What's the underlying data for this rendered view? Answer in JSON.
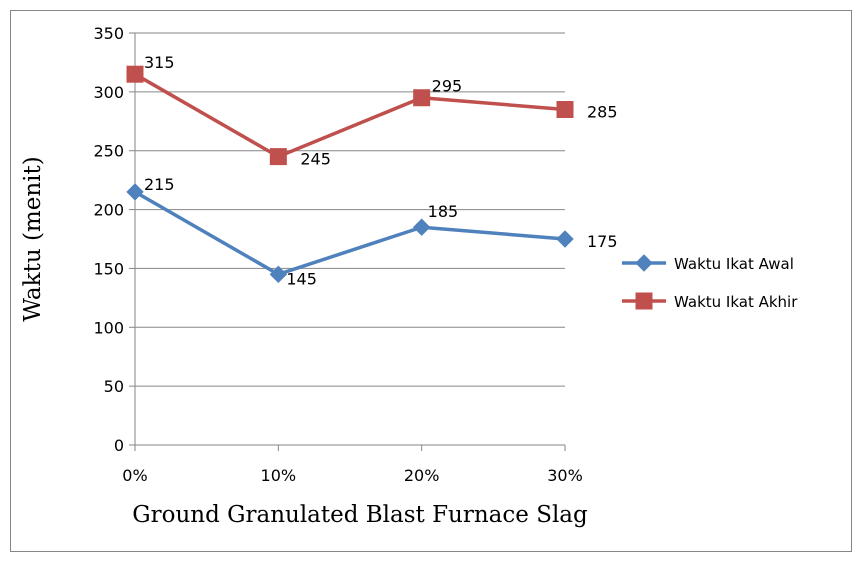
{
  "chart_data": {
    "type": "line",
    "categories": [
      "0%",
      "10%",
      "20%",
      "30%"
    ],
    "series": [
      {
        "name": "Waktu Ikat Awal",
        "values": [
          215,
          145,
          185,
          175
        ],
        "color": "#4F81BD",
        "marker": "diamond"
      },
      {
        "name": "Waktu Ikat Akhir",
        "values": [
          315,
          245,
          295,
          285
        ],
        "color": "#C0504D",
        "marker": "square"
      }
    ],
    "xlabel": "Ground Granulated Blast Furnace Slag",
    "ylabel": "Waktu (menit)",
    "ylim": [
      0,
      350
    ],
    "yticks": [
      0,
      50,
      100,
      150,
      200,
      250,
      300,
      350
    ],
    "grid": true,
    "legend_position": "right"
  }
}
